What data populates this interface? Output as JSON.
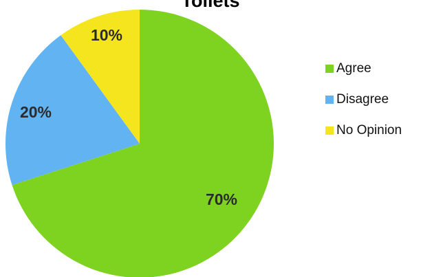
{
  "chart_data": {
    "type": "pie",
    "title": "Toilets",
    "categories": [
      "Agree",
      "Disagree",
      "No Opinion"
    ],
    "values": [
      70,
      20,
      10
    ],
    "labels": [
      "70%",
      "20%",
      "10%"
    ],
    "colors": [
      "#7ed321",
      "#62b3f2",
      "#f5e51e"
    ],
    "start_angle_deg": 0,
    "direction": "clockwise",
    "legend_position": "right"
  }
}
